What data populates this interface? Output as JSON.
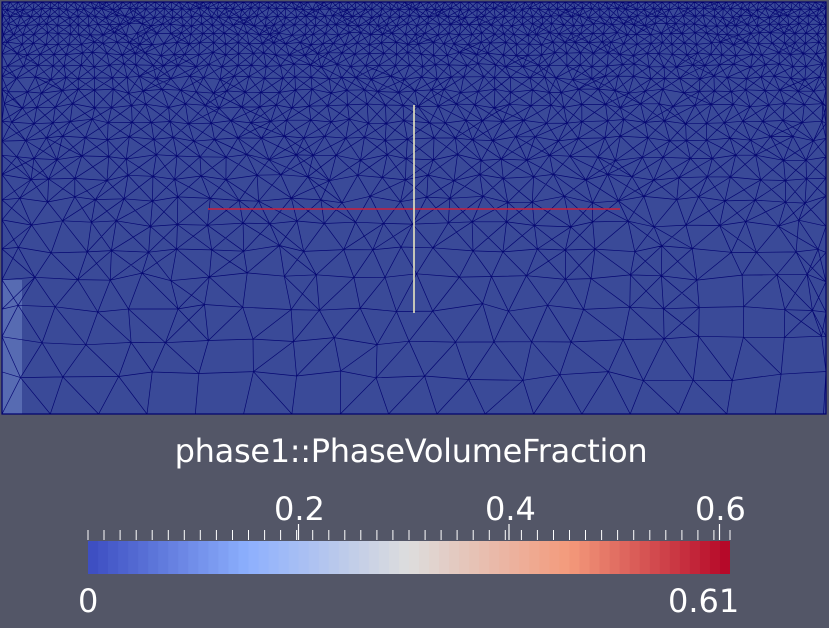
{
  "view": {
    "background_color": "#535667",
    "mesh_fill_color": "#3a4a98",
    "mesh_edge_color": "#00006e",
    "axis_x_color": "#c8203c",
    "axis_y_color": "#e8e6c0"
  },
  "color_legend": {
    "title": "phase1::PhaseVolumeFraction",
    "range_min_label": "0",
    "range_max_label": "0.61",
    "range": [
      0,
      0.61
    ],
    "tick_labels": [
      "0.2",
      "0.4",
      "0.6"
    ],
    "tick_values": [
      0.2,
      0.4,
      0.6
    ],
    "colormap": "Cool to Warm",
    "color_stops": [
      "#3b4cc0",
      "#8db0fe",
      "#dddddd",
      "#f49a7b",
      "#b40426"
    ],
    "discrete_bins": 256
  }
}
